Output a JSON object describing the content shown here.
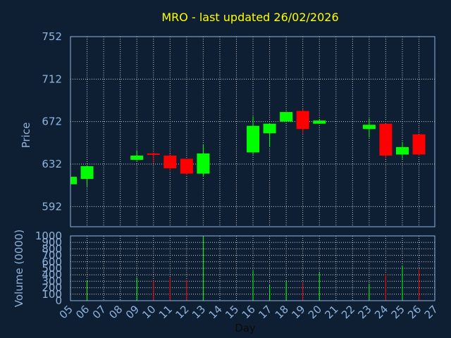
{
  "chart_data": {
    "type": "candlestick",
    "title": "MRO - last updated 26/02/2026",
    "x_axis_label": "Day",
    "categories": [
      "05",
      "06",
      "07",
      "08",
      "09",
      "10",
      "11",
      "12",
      "13",
      "14",
      "15",
      "16",
      "17",
      "18",
      "19",
      "20",
      "21",
      "22",
      "23",
      "24",
      "25",
      "26",
      "27"
    ],
    "price_panel": {
      "ylabel": "Price",
      "ylim": [
        573,
        752
      ],
      "yticks": [
        592,
        632,
        672,
        712,
        752
      ],
      "candles": [
        {
          "day": "05",
          "open": 613,
          "high": 619,
          "low": 612,
          "close": 620
        },
        {
          "day": "06",
          "open": 618,
          "high": 630,
          "low": 611,
          "close": 630
        },
        {
          "day": "09",
          "open": 636,
          "high": 645,
          "low": 635,
          "close": 640
        },
        {
          "day": "10",
          "open": 642,
          "high": 643,
          "low": 633,
          "close": 641
        },
        {
          "day": "11",
          "open": 640,
          "high": 642,
          "low": 626,
          "close": 628
        },
        {
          "day": "12",
          "open": 637,
          "high": 637,
          "low": 622,
          "close": 623
        },
        {
          "day": "13",
          "open": 623,
          "high": 650,
          "low": 620,
          "close": 642
        },
        {
          "day": "16",
          "open": 643,
          "high": 677,
          "low": 641,
          "close": 668
        },
        {
          "day": "17",
          "open": 661,
          "high": 670,
          "low": 648,
          "close": 670
        },
        {
          "day": "18",
          "open": 672,
          "high": 681,
          "low": 672,
          "close": 681
        },
        {
          "day": "19",
          "open": 682,
          "high": 684,
          "low": 661,
          "close": 665
        },
        {
          "day": "20",
          "open": 670,
          "high": 674,
          "low": 670,
          "close": 673
        },
        {
          "day": "23",
          "open": 665,
          "high": 675,
          "low": 657,
          "close": 669
        },
        {
          "day": "24",
          "open": 670,
          "high": 670,
          "low": 637,
          "close": 640
        },
        {
          "day": "25",
          "open": 641,
          "high": 653,
          "low": 637,
          "close": 648
        },
        {
          "day": "26",
          "open": 660,
          "high": 660,
          "low": 640,
          "close": 641
        }
      ]
    },
    "volume_panel": {
      "ylabel": "Volume (0000)",
      "ylim": [
        0,
        1000
      ],
      "yticks": [
        0,
        100,
        200,
        300,
        400,
        500,
        600,
        700,
        800,
        900,
        1000
      ],
      "bars": [
        {
          "day": "06",
          "value": 310,
          "direction": "up"
        },
        {
          "day": "09",
          "value": 360,
          "direction": "up"
        },
        {
          "day": "10",
          "value": 310,
          "direction": "down"
        },
        {
          "day": "11",
          "value": 360,
          "direction": "down"
        },
        {
          "day": "12",
          "value": 320,
          "direction": "down"
        },
        {
          "day": "13",
          "value": 990,
          "direction": "up"
        },
        {
          "day": "16",
          "value": 460,
          "direction": "up"
        },
        {
          "day": "17",
          "value": 240,
          "direction": "up"
        },
        {
          "day": "18",
          "value": 300,
          "direction": "up"
        },
        {
          "day": "19",
          "value": 280,
          "direction": "down"
        },
        {
          "day": "20",
          "value": 440,
          "direction": "up"
        },
        {
          "day": "23",
          "value": 260,
          "direction": "up"
        },
        {
          "day": "24",
          "value": 410,
          "direction": "down"
        },
        {
          "day": "25",
          "value": 540,
          "direction": "up"
        },
        {
          "day": "26",
          "value": 490,
          "direction": "down"
        }
      ]
    },
    "colors": {
      "background": "#0f1f33",
      "up": "#00ff00",
      "down": "#ff0000",
      "title": "#ffff00",
      "axis_text": "#8fb3dc",
      "grid": "#c8c8c8"
    },
    "grid": true
  }
}
